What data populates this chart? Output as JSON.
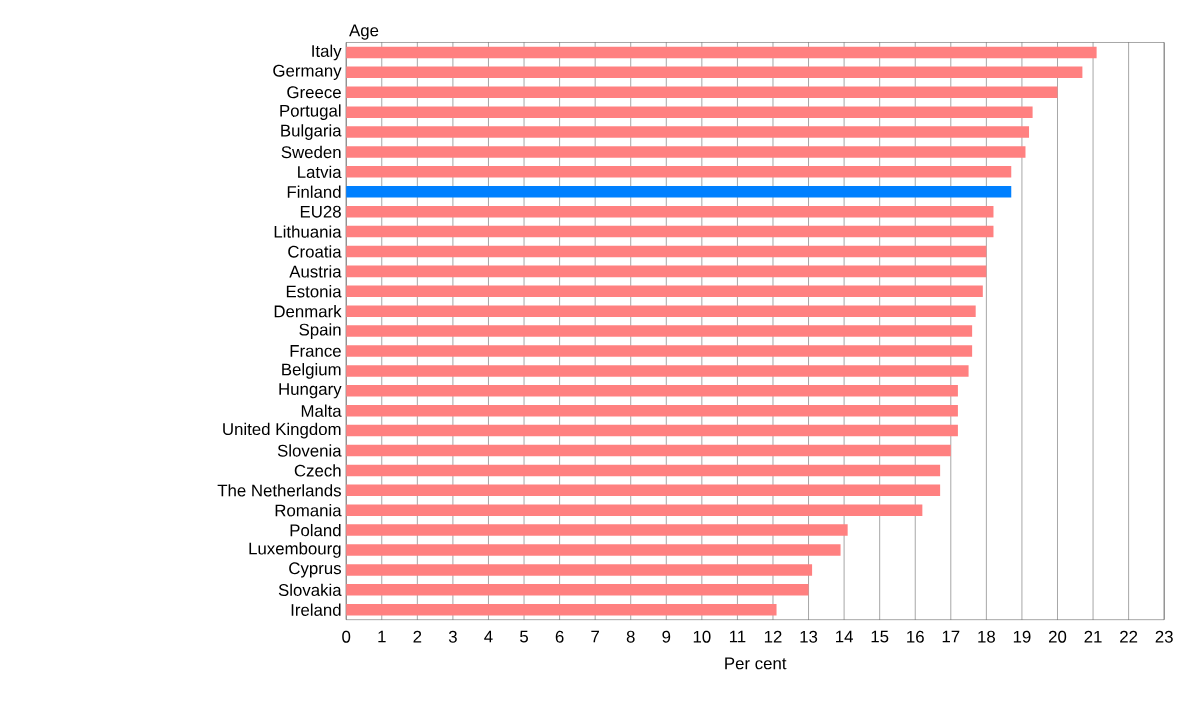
{
  "chart_data": {
    "type": "bar",
    "orientation": "horizontal",
    "ylabel": "Age",
    "xlabel": "Per cent",
    "categories": [
      "Italy",
      "Germany",
      "Greece",
      "Portugal",
      "Bulgaria",
      "Sweden",
      "Latvia",
      "Finland",
      "EU28",
      "Lithuania",
      "Croatia",
      "Austria",
      "Estonia",
      "Denmark",
      "Spain",
      "France",
      "Belgium",
      "Hungary",
      "Malta",
      "United Kingdom",
      "Slovenia",
      "Czech",
      "The Netherlands",
      "Romania",
      "Poland",
      "Luxembourg",
      "Cyprus",
      "Slovakia",
      "Ireland"
    ],
    "values": [
      21.1,
      20.7,
      20.0,
      19.3,
      19.2,
      19.1,
      18.7,
      18.7,
      18.2,
      18.2,
      18.0,
      18.0,
      17.9,
      17.7,
      17.6,
      17.6,
      17.5,
      17.2,
      17.2,
      17.2,
      17.0,
      16.7,
      16.7,
      16.2,
      14.1,
      13.9,
      13.1,
      13.0,
      12.1
    ],
    "colors": [
      "#ff8080",
      "#ff8080",
      "#ff8080",
      "#ff8080",
      "#ff8080",
      "#ff8080",
      "#ff8080",
      "#0080ff",
      "#ff8080",
      "#ff8080",
      "#ff8080",
      "#ff8080",
      "#ff8080",
      "#ff8080",
      "#ff8080",
      "#ff8080",
      "#ff8080",
      "#ff8080",
      "#ff8080",
      "#ff8080",
      "#ff8080",
      "#ff8080",
      "#ff8080",
      "#ff8080",
      "#ff8080",
      "#ff8080",
      "#ff8080",
      "#ff8080",
      "#ff8080"
    ],
    "xlim": [
      0,
      23
    ],
    "xticks": [
      0,
      1,
      2,
      3,
      4,
      5,
      6,
      7,
      8,
      9,
      10,
      11,
      12,
      13,
      14,
      15,
      16,
      17,
      18,
      19,
      20,
      21,
      22,
      23
    ],
    "grid": "x"
  }
}
